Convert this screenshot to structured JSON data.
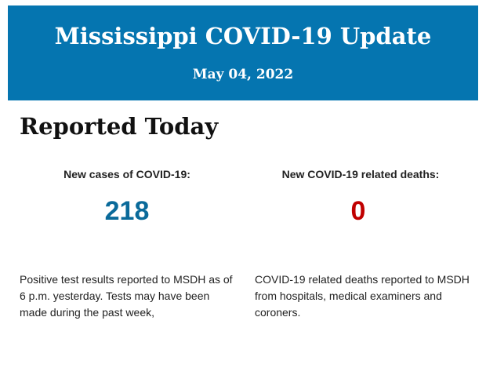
{
  "header": {
    "title": "Mississippi COVID-19 Update",
    "date": "May 04, 2022"
  },
  "section_title": "Reported Today",
  "cases": {
    "label": "New cases of COVID-19:",
    "value": "218",
    "color": "#0a6a9a",
    "description": "Positive test results reported to MSDH as of 6 p.m. yesterday. Tests may have been made during the past week,"
  },
  "deaths": {
    "label": "New COVID-19 related deaths:",
    "value": "0",
    "color": "#c00000",
    "description": "COVID-19 related deaths reported to MSDH from hospitals, medical examiners and coroners."
  }
}
